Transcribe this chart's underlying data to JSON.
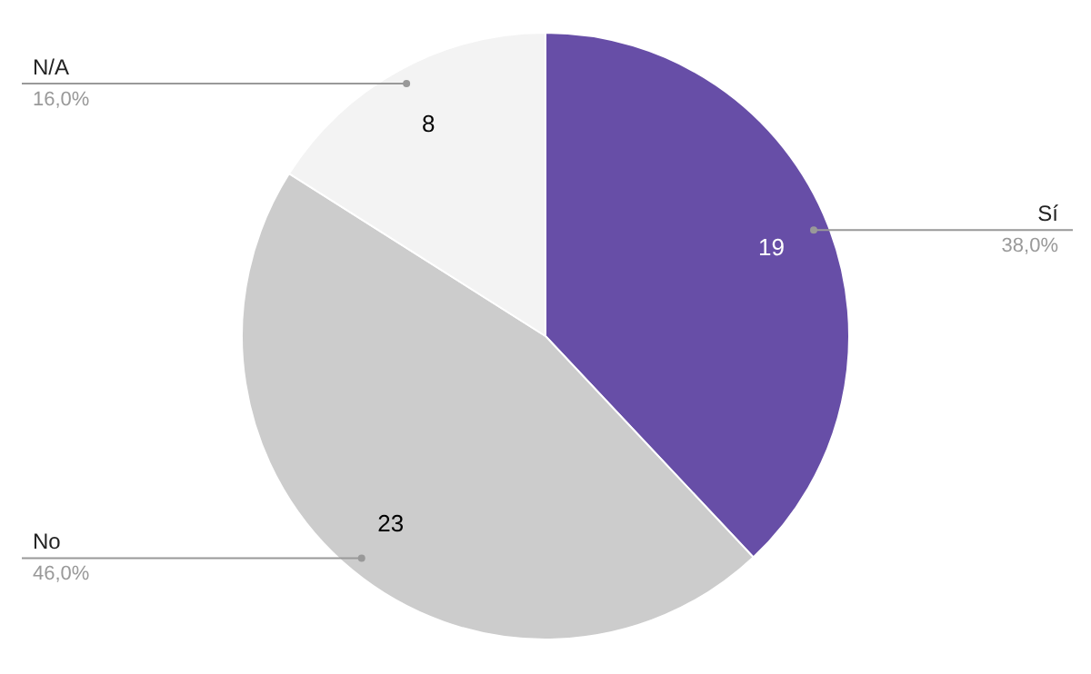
{
  "chart_data": {
    "type": "pie",
    "categories": [
      "Sí",
      "No",
      "N/A"
    ],
    "values": [
      19,
      23,
      8
    ],
    "colors": [
      "#674ea7",
      "#cccccc",
      "#f3f3f3"
    ],
    "data_labels": true,
    "annotations": [
      {
        "text": "38,0%",
        "x": "Sí"
      },
      {
        "text": "46,0%",
        "x": "No"
      },
      {
        "text": "16,0%",
        "x": "N/A"
      }
    ]
  }
}
